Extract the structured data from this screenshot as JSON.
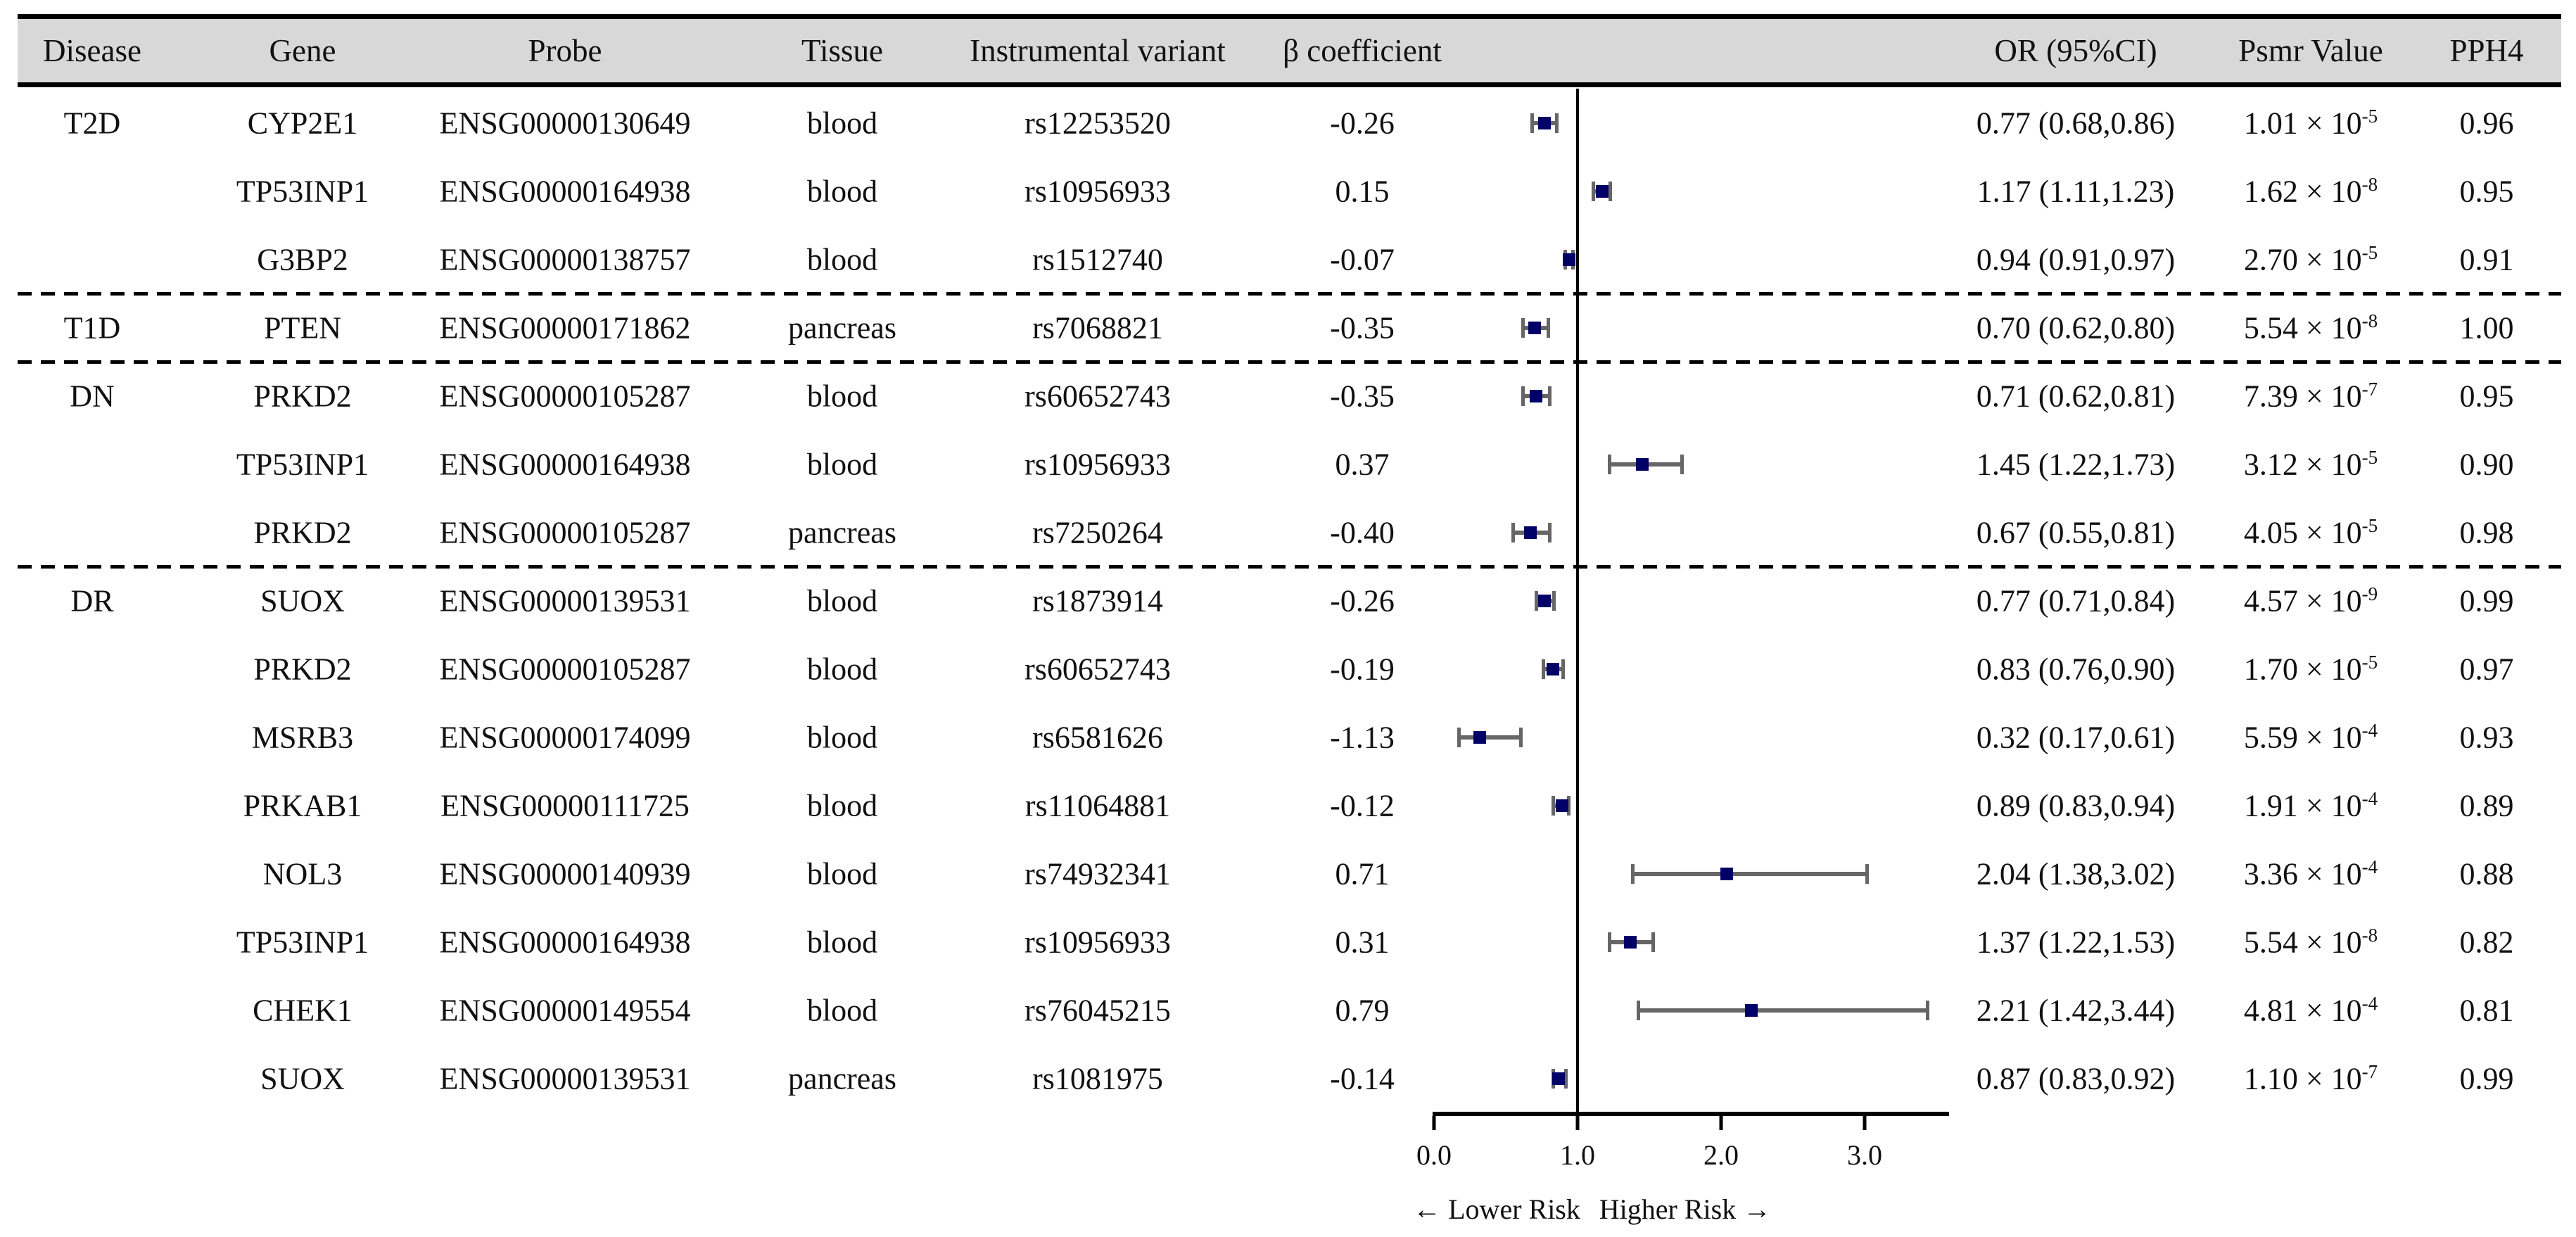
{
  "header": {
    "columns": [
      "Disease",
      "Gene",
      "Probe",
      "Tissue",
      "Instrumental variant",
      "β coefficient",
      "OR (95%CI)",
      "Psmr Value",
      "PPH4"
    ]
  },
  "colors": {
    "header_bg": "#d8d8d8",
    "marker": "#000066",
    "whisker": "#666666",
    "text": "#111111",
    "line": "#000000"
  },
  "chart_data": {
    "type": "scatter",
    "subtype": "forest-plot-with-table",
    "title": "",
    "xlabel": "",
    "ylabel": "",
    "x_axis": {
      "tick_labels": [
        "0.0",
        "1.0",
        "2.0",
        "3.0"
      ],
      "tick_values": [
        0,
        1,
        2,
        3
      ],
      "range": [
        0,
        3.6
      ],
      "reference_line_value": 1.0,
      "grid": false
    },
    "risk_labels": {
      "lower": "← Lower Risk",
      "higher": "Higher Risk →"
    },
    "sections": [
      {
        "disease": "T2D",
        "rows": [
          {
            "gene": "CYP2E1",
            "probe": "ENSG00000130649",
            "tissue": "blood",
            "variant": "rs12253520",
            "beta": "-0.26",
            "or": 0.77,
            "ci_low": 0.68,
            "ci_high": 0.86,
            "or_text": "0.77 (0.68,0.86)",
            "psmr_mantissa": "1.01",
            "psmr_exponent": "-5",
            "pph4": "0.96"
          },
          {
            "gene": "TP53INP1",
            "probe": "ENSG00000164938",
            "tissue": "blood",
            "variant": "rs10956933",
            "beta": "0.15",
            "or": 1.17,
            "ci_low": 1.11,
            "ci_high": 1.23,
            "or_text": "1.17 (1.11,1.23)",
            "psmr_mantissa": "1.62",
            "psmr_exponent": "-8",
            "pph4": "0.95"
          },
          {
            "gene": "G3BP2",
            "probe": "ENSG00000138757",
            "tissue": "blood",
            "variant": "rs1512740",
            "beta": "-0.07",
            "or": 0.94,
            "ci_low": 0.91,
            "ci_high": 0.97,
            "or_text": "0.94 (0.91,0.97)",
            "psmr_mantissa": "2.70",
            "psmr_exponent": "-5",
            "pph4": "0.91"
          }
        ]
      },
      {
        "disease": "T1D",
        "rows": [
          {
            "gene": "PTEN",
            "probe": "ENSG00000171862",
            "tissue": "pancreas",
            "variant": "rs7068821",
            "beta": "-0.35",
            "or": 0.7,
            "ci_low": 0.62,
            "ci_high": 0.8,
            "or_text": "0.70 (0.62,0.80)",
            "psmr_mantissa": "5.54",
            "psmr_exponent": "-8",
            "pph4": "1.00"
          }
        ]
      },
      {
        "disease": "DN",
        "rows": [
          {
            "gene": "PRKD2",
            "probe": "ENSG00000105287",
            "tissue": "blood",
            "variant": "rs60652743",
            "beta": "-0.35",
            "or": 0.71,
            "ci_low": 0.62,
            "ci_high": 0.81,
            "or_text": "0.71 (0.62,0.81)",
            "psmr_mantissa": "7.39",
            "psmr_exponent": "-7",
            "pph4": "0.95"
          },
          {
            "gene": "TP53INP1",
            "probe": "ENSG00000164938",
            "tissue": "blood",
            "variant": "rs10956933",
            "beta": "0.37",
            "or": 1.45,
            "ci_low": 1.22,
            "ci_high": 1.73,
            "or_text": "1.45 (1.22,1.73)",
            "psmr_mantissa": "3.12",
            "psmr_exponent": "-5",
            "pph4": "0.90"
          },
          {
            "gene": "PRKD2",
            "probe": "ENSG00000105287",
            "tissue": "pancreas",
            "variant": "rs7250264",
            "beta": "-0.40",
            "or": 0.67,
            "ci_low": 0.55,
            "ci_high": 0.81,
            "or_text": "0.67 (0.55,0.81)",
            "psmr_mantissa": "4.05",
            "psmr_exponent": "-5",
            "pph4": "0.98"
          }
        ]
      },
      {
        "disease": "DR",
        "rows": [
          {
            "gene": "SUOX",
            "probe": "ENSG00000139531",
            "tissue": "blood",
            "variant": "rs1873914",
            "beta": "-0.26",
            "or": 0.77,
            "ci_low": 0.71,
            "ci_high": 0.84,
            "or_text": "0.77 (0.71,0.84)",
            "psmr_mantissa": "4.57",
            "psmr_exponent": "-9",
            "pph4": "0.99"
          },
          {
            "gene": "PRKD2",
            "probe": "ENSG00000105287",
            "tissue": "blood",
            "variant": "rs60652743",
            "beta": "-0.19",
            "or": 0.83,
            "ci_low": 0.76,
            "ci_high": 0.9,
            "or_text": "0.83 (0.76,0.90)",
            "psmr_mantissa": "1.70",
            "psmr_exponent": "-5",
            "pph4": "0.97"
          },
          {
            "gene": "MSRB3",
            "probe": "ENSG00000174099",
            "tissue": "blood",
            "variant": "rs6581626",
            "beta": "-1.13",
            "or": 0.32,
            "ci_low": 0.17,
            "ci_high": 0.61,
            "or_text": "0.32 (0.17,0.61)",
            "psmr_mantissa": "5.59",
            "psmr_exponent": "-4",
            "pph4": "0.93"
          },
          {
            "gene": "PRKAB1",
            "probe": "ENSG00000111725",
            "tissue": "blood",
            "variant": "rs11064881",
            "beta": "-0.12",
            "or": 0.89,
            "ci_low": 0.83,
            "ci_high": 0.94,
            "or_text": "0.89 (0.83,0.94)",
            "psmr_mantissa": "1.91",
            "psmr_exponent": "-4",
            "pph4": "0.89"
          },
          {
            "gene": "NOL3",
            "probe": "ENSG00000140939",
            "tissue": "blood",
            "variant": "rs74932341",
            "beta": "0.71",
            "or": 2.04,
            "ci_low": 1.38,
            "ci_high": 3.02,
            "or_text": "2.04 (1.38,3.02)",
            "psmr_mantissa": "3.36",
            "psmr_exponent": "-4",
            "pph4": "0.88"
          },
          {
            "gene": "TP53INP1",
            "probe": "ENSG00000164938",
            "tissue": "blood",
            "variant": "rs10956933",
            "beta": "0.31",
            "or": 1.37,
            "ci_low": 1.22,
            "ci_high": 1.53,
            "or_text": "1.37 (1.22,1.53)",
            "psmr_mantissa": "5.54",
            "psmr_exponent": "-8",
            "pph4": "0.82"
          },
          {
            "gene": "CHEK1",
            "probe": "ENSG00000149554",
            "tissue": "blood",
            "variant": "rs76045215",
            "beta": "0.79",
            "or": 2.21,
            "ci_low": 1.42,
            "ci_high": 3.44,
            "or_text": "2.21 (1.42,3.44)",
            "psmr_mantissa": "4.81",
            "psmr_exponent": "-4",
            "pph4": "0.81"
          },
          {
            "gene": "SUOX",
            "probe": "ENSG00000139531",
            "tissue": "pancreas",
            "variant": "rs1081975",
            "beta": "-0.14",
            "or": 0.87,
            "ci_low": 0.83,
            "ci_high": 0.92,
            "or_text": "0.87 (0.83,0.92)",
            "psmr_mantissa": "1.10",
            "psmr_exponent": "-7",
            "pph4": "0.99"
          }
        ]
      }
    ]
  }
}
